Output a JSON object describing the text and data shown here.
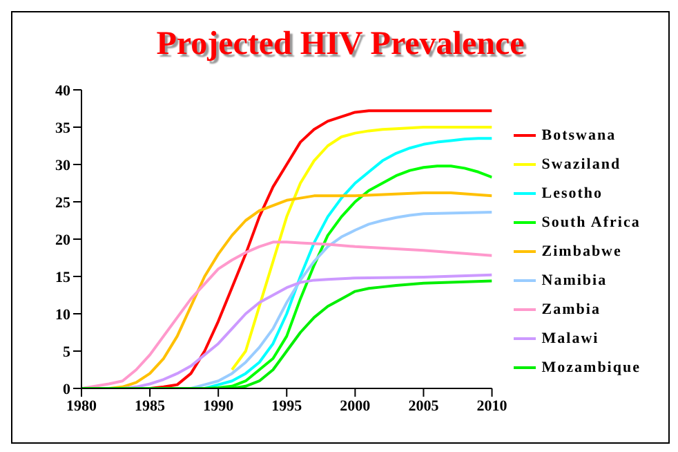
{
  "chart_data": {
    "type": "line",
    "title": "Projected HIV Prevalence",
    "xlim": [
      1980,
      2010
    ],
    "xticks": [
      1980,
      1985,
      1990,
      1995,
      2000,
      2005,
      2010
    ],
    "ylim": [
      0,
      40
    ],
    "yticks": [
      0,
      5,
      10,
      15,
      20,
      25,
      30,
      35,
      40
    ],
    "grid": false,
    "legend": "right",
    "marker": "none",
    "line_style": "solid",
    "series": [
      {
        "name": "Botswana",
        "color": "#ff0000",
        "x": [
          1980,
          1985,
          1986,
          1987,
          1988,
          1989,
          1990,
          1991,
          1992,
          1993,
          1994,
          1995,
          1996,
          1997,
          1998,
          1999,
          2000,
          2001,
          2005,
          2010
        ],
        "values": [
          0,
          0,
          0.2,
          0.5,
          2,
          5,
          9,
          13.5,
          18,
          23,
          27,
          30,
          33,
          34.7,
          35.8,
          36.4,
          37,
          37.2,
          37.2,
          37.2
        ]
      },
      {
        "name": "Swaziland",
        "color": "#ffff00",
        "x": [
          1991,
          1992,
          1993,
          1994,
          1995,
          1996,
          1997,
          1998,
          1999,
          2000,
          2001,
          2002,
          2003,
          2005,
          2010
        ],
        "values": [
          2.5,
          5,
          11,
          17,
          23,
          27.5,
          30.5,
          32.5,
          33.7,
          34.2,
          34.5,
          34.7,
          34.8,
          35,
          35
        ]
      },
      {
        "name": "Lesotho",
        "color": "#00ffff",
        "x": [
          1980,
          1989,
          1990,
          1991,
          1992,
          1993,
          1994,
          1995,
          1996,
          1997,
          1998,
          1999,
          2000,
          2001,
          2002,
          2003,
          2004,
          2005,
          2006,
          2007,
          2008,
          2009,
          2010
        ],
        "values": [
          0,
          0,
          0.5,
          1,
          2,
          3.5,
          6,
          10,
          15,
          19.5,
          23,
          25.5,
          27.5,
          29,
          30.5,
          31.5,
          32.2,
          32.7,
          33,
          33.2,
          33.4,
          33.5,
          33.5
        ]
      },
      {
        "name": "South Africa",
        "color": "#00ff00",
        "x": [
          1980,
          1989,
          1990,
          1991,
          1992,
          1993,
          1994,
          1995,
          1996,
          1997,
          1998,
          1999,
          2000,
          2001,
          2002,
          2003,
          2004,
          2005,
          2006,
          2007,
          2008,
          2009,
          2010
        ],
        "values": [
          0,
          0,
          0.1,
          0.3,
          1,
          2.5,
          4,
          7,
          12,
          16.5,
          20.5,
          23,
          25,
          26.5,
          27.5,
          28.5,
          29.2,
          29.6,
          29.8,
          29.8,
          29.5,
          29,
          28.3
        ]
      },
      {
        "name": "Zimbabwe",
        "color": "#ffc000",
        "x": [
          1980,
          1982,
          1983,
          1984,
          1985,
          1986,
          1987,
          1988,
          1989,
          1990,
          1991,
          1992,
          1993,
          1994,
          1995,
          1996,
          1997,
          2000,
          2005,
          2007,
          2010
        ],
        "values": [
          0,
          0,
          0.2,
          0.8,
          2,
          4,
          7,
          11,
          15,
          18,
          20.5,
          22.5,
          23.8,
          24.5,
          25.2,
          25.5,
          25.8,
          25.8,
          26.2,
          26.2,
          25.8
        ]
      },
      {
        "name": "Namibia",
        "color": "#99ccff",
        "x": [
          1980,
          1988,
          1989,
          1990,
          1991,
          1992,
          1993,
          1994,
          1995,
          1996,
          1997,
          1998,
          1999,
          2000,
          2001,
          2002,
          2003,
          2004,
          2005,
          2010
        ],
        "values": [
          0,
          0,
          0.5,
          1,
          2,
          3.5,
          5.5,
          8,
          11.5,
          14.5,
          17,
          19,
          20.3,
          21.2,
          22,
          22.5,
          22.9,
          23.2,
          23.4,
          23.6
        ]
      },
      {
        "name": "Zambia",
        "color": "#ff99cc",
        "x": [
          1980,
          1981,
          1982,
          1983,
          1984,
          1985,
          1986,
          1987,
          1988,
          1989,
          1990,
          1991,
          1992,
          1993,
          1994,
          1995,
          1996,
          1997,
          1998,
          2000,
          2005,
          2010
        ],
        "values": [
          0,
          0.3,
          0.6,
          1,
          2.5,
          4.5,
          7,
          9.5,
          12,
          14,
          16,
          17.2,
          18.2,
          19,
          19.6,
          19.6,
          19.5,
          19.4,
          19.3,
          19,
          18.5,
          17.8
        ]
      },
      {
        "name": "Malawi",
        "color": "#cc99ff",
        "x": [
          1980,
          1983,
          1984,
          1985,
          1986,
          1987,
          1988,
          1989,
          1990,
          1991,
          1992,
          1993,
          1994,
          1995,
          1996,
          1997,
          1998,
          2000,
          2005,
          2010
        ],
        "values": [
          0,
          0,
          0.2,
          0.6,
          1.2,
          2,
          3,
          4.5,
          6,
          8,
          10,
          11.5,
          12.5,
          13.5,
          14.2,
          14.5,
          14.6,
          14.8,
          14.9,
          15.2
        ]
      },
      {
        "name": "Mozambique",
        "color": "#00ee00",
        "x": [
          1980,
          1991,
          1992,
          1993,
          1994,
          1995,
          1996,
          1997,
          1998,
          1999,
          2000,
          2001,
          2002,
          2003,
          2005,
          2010
        ],
        "values": [
          0,
          0,
          0.3,
          1,
          2.5,
          5,
          7.5,
          9.5,
          11,
          12,
          13,
          13.4,
          13.6,
          13.8,
          14.1,
          14.4
        ]
      }
    ]
  }
}
